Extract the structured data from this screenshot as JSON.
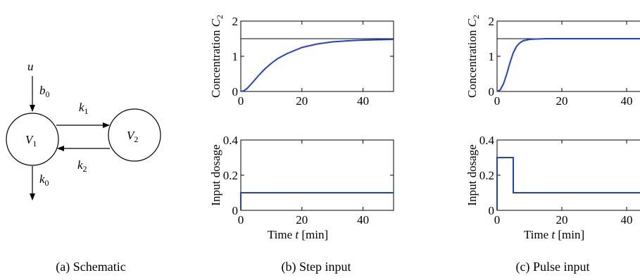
{
  "schematic": {
    "caption": "(a) Schematic",
    "labels": {
      "u": "u",
      "b": "b",
      "b_sub": "0",
      "k1": "k",
      "k1_sub": "1",
      "k2": "k",
      "k2_sub": "2",
      "k0": "k",
      "k0_sub": "0",
      "v1": "V",
      "v1_sub": "1",
      "v2": "V",
      "v2_sub": "2"
    }
  },
  "captions": {
    "step": "(b) Step input",
    "pulse": "(c) Pulse input"
  },
  "chart_data": [
    {
      "id": "step-concentration",
      "type": "line",
      "ylabel": "Concentration C",
      "ylabel_sub": "2",
      "xlim": [
        0,
        50
      ],
      "ylim": [
        0,
        2
      ],
      "xticks": [
        0,
        20,
        40
      ],
      "yticks": [
        0,
        1,
        2
      ],
      "reference_line": 1.5,
      "series": [
        {
          "x": [
            0,
            1,
            2,
            3,
            4,
            5,
            6,
            8,
            10,
            12,
            15,
            20,
            25,
            30,
            35,
            40,
            45,
            50
          ],
          "y": [
            0,
            0.02,
            0.08,
            0.17,
            0.27,
            0.37,
            0.47,
            0.65,
            0.8,
            0.93,
            1.07,
            1.25,
            1.35,
            1.41,
            1.44,
            1.46,
            1.47,
            1.48
          ]
        }
      ]
    },
    {
      "id": "step-input",
      "type": "line",
      "ylabel": "Input dosage",
      "xlabel": "Time t [min]",
      "xlim": [
        0,
        50
      ],
      "ylim": [
        0,
        0.4
      ],
      "xticks": [
        0,
        20,
        40
      ],
      "yticks": [
        0,
        0.2,
        0.4
      ],
      "series": [
        {
          "x": [
            0,
            0,
            50
          ],
          "y": [
            0,
            0.1,
            0.1
          ]
        }
      ]
    },
    {
      "id": "pulse-concentration",
      "type": "line",
      "ylabel": "Concentration C",
      "ylabel_sub": "2",
      "xlim": [
        0,
        50
      ],
      "ylim": [
        0,
        2
      ],
      "xticks": [
        0,
        20,
        40
      ],
      "yticks": [
        0,
        1,
        2
      ],
      "reference_line": 1.5,
      "series": [
        {
          "x": [
            0,
            1,
            2,
            3,
            4,
            5,
            6,
            7,
            8,
            10,
            12,
            15,
            20,
            30,
            40,
            50
          ],
          "y": [
            0,
            0.05,
            0.22,
            0.5,
            0.82,
            1.1,
            1.28,
            1.38,
            1.44,
            1.48,
            1.49,
            1.5,
            1.5,
            1.5,
            1.5,
            1.5
          ]
        }
      ]
    },
    {
      "id": "pulse-input",
      "type": "line",
      "ylabel": "Input dosage",
      "xlabel": "Time t [min]",
      "xlim": [
        0,
        50
      ],
      "ylim": [
        0,
        0.4
      ],
      "xticks": [
        0,
        20,
        40
      ],
      "yticks": [
        0,
        0.2,
        0.4
      ],
      "series": [
        {
          "x": [
            0,
            0,
            5,
            5,
            50
          ],
          "y": [
            0,
            0.3,
            0.3,
            0.1,
            0.1
          ]
        }
      ]
    }
  ]
}
